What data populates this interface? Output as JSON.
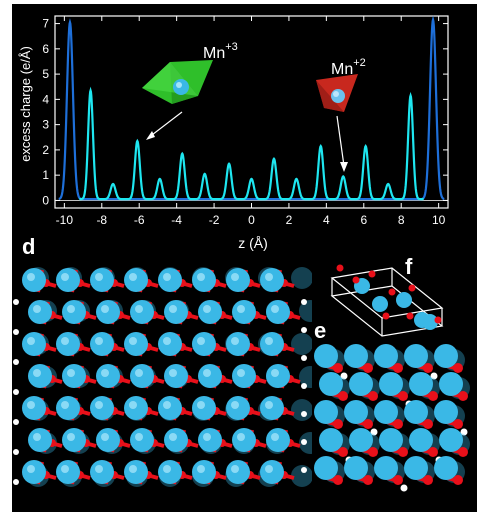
{
  "chart_data": {
    "type": "line",
    "xlabel": "z (Å)",
    "ylabel": "excess charge (e/Å)",
    "xlim": [
      -10.5,
      10.5
    ],
    "ylim": [
      -0.3,
      7.3
    ],
    "xticks": [
      -10,
      -8,
      -6,
      -4,
      -2,
      0,
      2,
      4,
      6,
      8,
      10
    ],
    "xtick_labels": [
      "-10",
      "-8",
      "-6",
      "-4",
      "-2",
      "0",
      "2",
      "4",
      "6",
      "8",
      "10"
    ],
    "yticks": [
      0,
      1,
      2,
      3,
      4,
      5,
      6,
      7
    ],
    "ytick_labels": [
      "0",
      "1",
      "2",
      "3",
      "4",
      "5",
      "6",
      "7"
    ],
    "series": [
      {
        "color": "#1e6fd9",
        "peaks": [
          {
            "x": -9.7,
            "y": 7.0
          },
          {
            "x": 9.7,
            "y": 7.1
          }
        ]
      },
      {
        "color": "#1ee6f0",
        "peaks": [
          {
            "x": -8.6,
            "y": 4.3
          },
          {
            "x": -7.4,
            "y": 0.6
          },
          {
            "x": -6.1,
            "y": 2.3
          },
          {
            "x": -4.9,
            "y": 0.8
          },
          {
            "x": -3.7,
            "y": 1.8
          },
          {
            "x": -2.5,
            "y": 1.0
          },
          {
            "x": -1.2,
            "y": 1.4
          },
          {
            "x": 0.0,
            "y": 0.8
          },
          {
            "x": 1.2,
            "y": 1.6
          },
          {
            "x": 2.4,
            "y": 0.8
          },
          {
            "x": 3.7,
            "y": 2.1
          },
          {
            "x": 4.9,
            "y": 0.9
          },
          {
            "x": 6.1,
            "y": 2.1
          },
          {
            "x": 7.3,
            "y": 0.6
          },
          {
            "x": 8.5,
            "y": 4.1
          }
        ]
      }
    ],
    "annotations": [
      {
        "base": "Mn",
        "sup": "+3"
      },
      {
        "base": "Mn",
        "sup": "+2"
      }
    ]
  },
  "panels": {
    "d": "d",
    "e": "e",
    "f": "f"
  },
  "colors": {
    "oxygen": "#e8101a",
    "manganese": "#3ab8e6",
    "hydrogen": "#ffffff",
    "octahedron_mn3": "#2fbf2a",
    "tetrahedron_mn2": "#c8281e"
  }
}
